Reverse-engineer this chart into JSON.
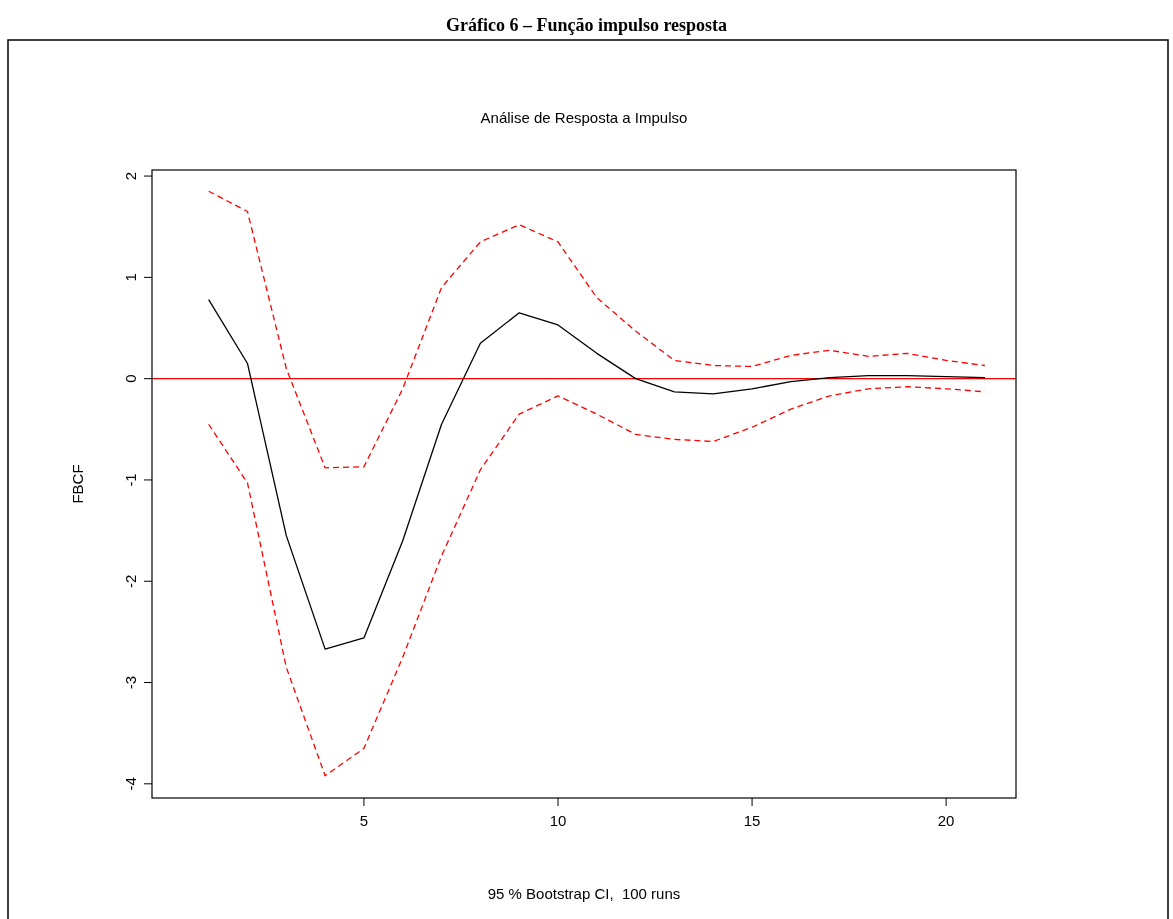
{
  "chart_data": {
    "type": "line",
    "title": "Gráfico 6 – Função impulso resposta",
    "subtitle": "Análise de Resposta a Impulso",
    "xlabel": "95 % Bootstrap CI,  100 runs",
    "ylabel": "FBCF",
    "x": [
      1,
      2,
      3,
      4,
      5,
      6,
      7,
      8,
      9,
      10,
      11,
      12,
      13,
      14,
      15,
      16,
      17,
      18,
      19,
      20,
      21
    ],
    "series": [
      {
        "color": "#000000",
        "line_style": "solid",
        "values": [
          0.78,
          0.15,
          -1.55,
          -2.67,
          -2.56,
          -1.6,
          -0.45,
          0.35,
          0.65,
          0.53,
          0.25,
          0.0,
          -0.13,
          -0.15,
          -0.1,
          -0.03,
          0.01,
          0.03,
          0.03,
          0.02,
          0.01
        ]
      },
      {
        "color": "#ff0000",
        "line_style": "dashed",
        "values": [
          1.85,
          1.65,
          0.1,
          -0.88,
          -0.87,
          -0.1,
          0.9,
          1.35,
          1.52,
          1.35,
          0.8,
          0.47,
          0.18,
          0.13,
          0.12,
          0.23,
          0.28,
          0.22,
          0.25,
          0.18,
          0.13
        ]
      },
      {
        "color": "#ff0000",
        "line_style": "dashed",
        "values": [
          -0.45,
          -1.03,
          -2.85,
          -3.92,
          -3.65,
          -2.75,
          -1.75,
          -0.9,
          -0.35,
          -0.17,
          -0.35,
          -0.55,
          -0.6,
          -0.62,
          -0.48,
          -0.3,
          -0.17,
          -0.1,
          -0.08,
          -0.1,
          -0.13
        ]
      }
    ],
    "xlim": [
      -0.46,
      21.8
    ],
    "xticks": [
      5,
      10,
      15,
      20
    ],
    "ylim": [
      -4.14,
      2.06
    ],
    "yticks": [
      -4,
      -3,
      -2,
      -1,
      0,
      1,
      2
    ],
    "ref_lines": [
      {
        "axis": "y",
        "value": 0,
        "color": "#ff0000"
      }
    ],
    "grid": false,
    "marker": "none"
  }
}
